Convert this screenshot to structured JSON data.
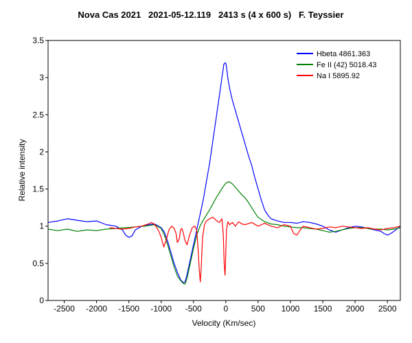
{
  "chart_data": {
    "type": "line",
    "title": "Nova Cas 2021   2021-05-12.119   2413 s (4 x 600 s)   F. Teyssier",
    "xlabel": "Velocity (Km/sec)",
    "ylabel": "Relative intensity",
    "xlim": [
      -2750,
      2700
    ],
    "ylim": [
      0,
      3.5
    ],
    "x_ticks": [
      -2500,
      -2000,
      -1500,
      -1000,
      -500,
      0,
      500,
      1000,
      1500,
      2000,
      2500
    ],
    "x_tick_labels": [
      "-2500",
      "-2000",
      "-1500",
      "-1000",
      "-500",
      "0",
      "500",
      "1000",
      "1500",
      "2000",
      "2500"
    ],
    "y_ticks": [
      0,
      0.5,
      1,
      1.5,
      2,
      2.5,
      3,
      3.5
    ],
    "y_tick_labels": [
      "0",
      "0.5",
      "1",
      "1.5",
      "2",
      "2.5",
      "3",
      "3.5"
    ],
    "grid": false,
    "legend_position": "top-right",
    "series": [
      {
        "name": "Hbeta  4861.363",
        "color": "#0000ff",
        "x": [
          -2750,
          -2600,
          -2450,
          -2300,
          -2150,
          -2000,
          -1850,
          -1700,
          -1600,
          -1550,
          -1500,
          -1450,
          -1400,
          -1300,
          -1200,
          -1100,
          -1000,
          -950,
          -900,
          -850,
          -800,
          -750,
          -700,
          -660,
          -630,
          -600,
          -550,
          -500,
          -450,
          -400,
          -350,
          -300,
          -250,
          -200,
          -150,
          -100,
          -60,
          -30,
          -10,
          0,
          10,
          30,
          60,
          100,
          150,
          200,
          250,
          300,
          350,
          400,
          450,
          500,
          550,
          600,
          650,
          700,
          800,
          900,
          1000,
          1100,
          1200,
          1300,
          1400,
          1500,
          1600,
          1700,
          1800,
          1900,
          2000,
          2100,
          2200,
          2300,
          2400,
          2450,
          2500,
          2550,
          2600,
          2700
        ],
        "y": [
          1.05,
          1.07,
          1.1,
          1.08,
          1.06,
          1.07,
          1.02,
          1.0,
          0.95,
          0.88,
          0.85,
          0.87,
          0.95,
          1.0,
          1.02,
          1.03,
          0.98,
          0.92,
          0.8,
          0.65,
          0.5,
          0.38,
          0.28,
          0.24,
          0.25,
          0.35,
          0.55,
          0.75,
          0.95,
          1.15,
          1.35,
          1.6,
          1.85,
          2.15,
          2.45,
          2.75,
          3.0,
          3.18,
          3.2,
          3.19,
          3.15,
          3.0,
          2.85,
          2.7,
          2.55,
          2.4,
          2.25,
          2.1,
          1.95,
          1.82,
          1.65,
          1.5,
          1.35,
          1.22,
          1.15,
          1.1,
          1.07,
          1.05,
          1.05,
          1.04,
          1.06,
          1.05,
          1.03,
          1.0,
          0.95,
          0.92,
          0.95,
          0.98,
          1.0,
          0.99,
          0.97,
          0.95,
          0.93,
          0.9,
          0.88,
          0.9,
          0.93,
          1.0
        ]
      },
      {
        "name": "Fe II (42)  5018.43",
        "color": "#008000",
        "x": [
          -2750,
          -2600,
          -2450,
          -2300,
          -2150,
          -2000,
          -1850,
          -1700,
          -1550,
          -1400,
          -1250,
          -1100,
          -1000,
          -950,
          -900,
          -850,
          -800,
          -750,
          -700,
          -660,
          -630,
          -600,
          -550,
          -500,
          -450,
          -400,
          -350,
          -300,
          -250,
          -200,
          -150,
          -100,
          -50,
          0,
          50,
          100,
          150,
          200,
          250,
          300,
          350,
          400,
          450,
          500,
          600,
          700,
          800,
          900,
          1000,
          1100,
          1200,
          1300,
          1400,
          1500,
          1600,
          1700,
          1800,
          1900,
          2000,
          2100,
          2200,
          2300,
          2400,
          2500,
          2600,
          2700
        ],
        "y": [
          0.96,
          0.94,
          0.96,
          0.93,
          0.95,
          0.94,
          0.96,
          0.97,
          0.98,
          0.99,
          1.0,
          1.02,
          0.97,
          0.88,
          0.75,
          0.6,
          0.45,
          0.33,
          0.27,
          0.23,
          0.22,
          0.3,
          0.5,
          0.7,
          0.88,
          1.0,
          1.08,
          1.15,
          1.22,
          1.3,
          1.38,
          1.45,
          1.52,
          1.58,
          1.6,
          1.57,
          1.52,
          1.47,
          1.42,
          1.38,
          1.32,
          1.25,
          1.18,
          1.12,
          1.06,
          1.03,
          1.02,
          1.0,
          0.99,
          0.98,
          0.98,
          0.97,
          0.96,
          0.94,
          0.92,
          0.93,
          0.95,
          0.97,
          0.98,
          0.98,
          0.97,
          0.96,
          0.96,
          0.95,
          0.96,
          0.98
        ]
      },
      {
        "name": "Na I  5895.92",
        "color": "#ff0000",
        "x": [
          -1800,
          -1700,
          -1600,
          -1500,
          -1400,
          -1300,
          -1200,
          -1150,
          -1100,
          -1060,
          -1030,
          -1000,
          -960,
          -920,
          -880,
          -840,
          -800,
          -770,
          -750,
          -720,
          -700,
          -680,
          -660,
          -630,
          -600,
          -560,
          -520,
          -480,
          -450,
          -430,
          -410,
          -395,
          -380,
          -360,
          -330,
          -300,
          -250,
          -200,
          -150,
          -100,
          -60,
          -40,
          -25,
          -12,
          -5,
          10,
          30,
          60,
          100,
          150,
          200,
          250,
          300,
          400,
          500,
          600,
          700,
          800,
          900,
          1000,
          1050,
          1100,
          1150,
          1200,
          1300,
          1400,
          1500,
          1600,
          1700,
          1800,
          1900,
          2000,
          2100,
          2200,
          2300,
          2400,
          2500,
          2600,
          2700
        ],
        "y": [
          0.98,
          0.97,
          0.96,
          0.97,
          0.99,
          1.0,
          1.03,
          1.05,
          1.02,
          0.97,
          0.92,
          0.85,
          0.72,
          0.82,
          0.95,
          1.0,
          0.97,
          0.9,
          0.78,
          0.83,
          0.95,
          0.97,
          0.92,
          0.8,
          0.75,
          0.88,
          0.98,
          1.0,
          0.95,
          0.7,
          0.4,
          0.25,
          0.45,
          0.85,
          1.02,
          1.07,
          1.1,
          1.12,
          1.08,
          1.05,
          1.1,
          0.9,
          0.5,
          0.34,
          0.5,
          0.95,
          1.06,
          1.02,
          1.05,
          1.0,
          1.06,
          1.03,
          1.02,
          1.05,
          1.0,
          1.04,
          1.0,
          0.98,
          1.02,
          1.0,
          0.9,
          0.88,
          0.95,
          1.0,
          0.98,
          0.96,
          0.97,
          0.99,
          0.98,
          1.0,
          0.99,
          0.98,
          0.97,
          0.98,
          0.96,
          0.95,
          0.97,
          0.98,
          1.0
        ]
      }
    ]
  }
}
